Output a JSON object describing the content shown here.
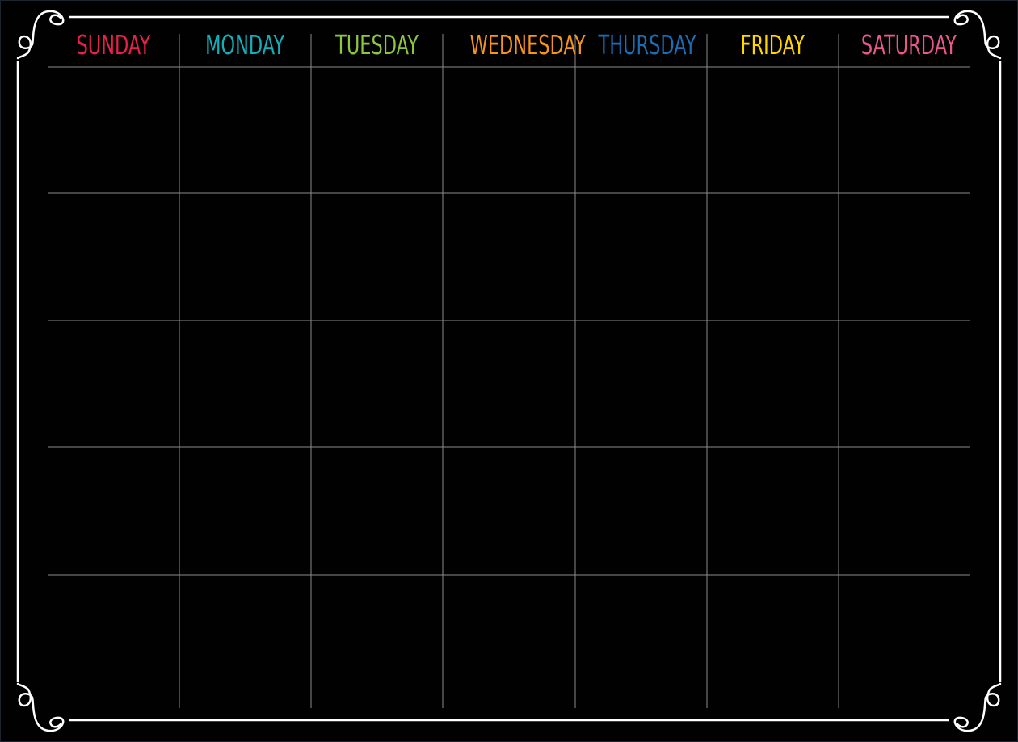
{
  "calendar": {
    "days": [
      {
        "label": "SUNDAY",
        "color": "#e8204a"
      },
      {
        "label": "MONDAY",
        "color": "#13b0bb"
      },
      {
        "label": "TUESDAY",
        "color": "#8dc63f"
      },
      {
        "label": "WEDNESDAY",
        "color": "#f7941d"
      },
      {
        "label": "THURSDAY",
        "color": "#1b6db5"
      },
      {
        "label": "FRIDAY",
        "color": "#ffd600"
      },
      {
        "label": "SATURDAY",
        "color": "#e9588d"
      }
    ],
    "week_rows": 5,
    "background": "#000000",
    "grid_color": "#8a8a8a",
    "border_color": "#ffffff"
  }
}
